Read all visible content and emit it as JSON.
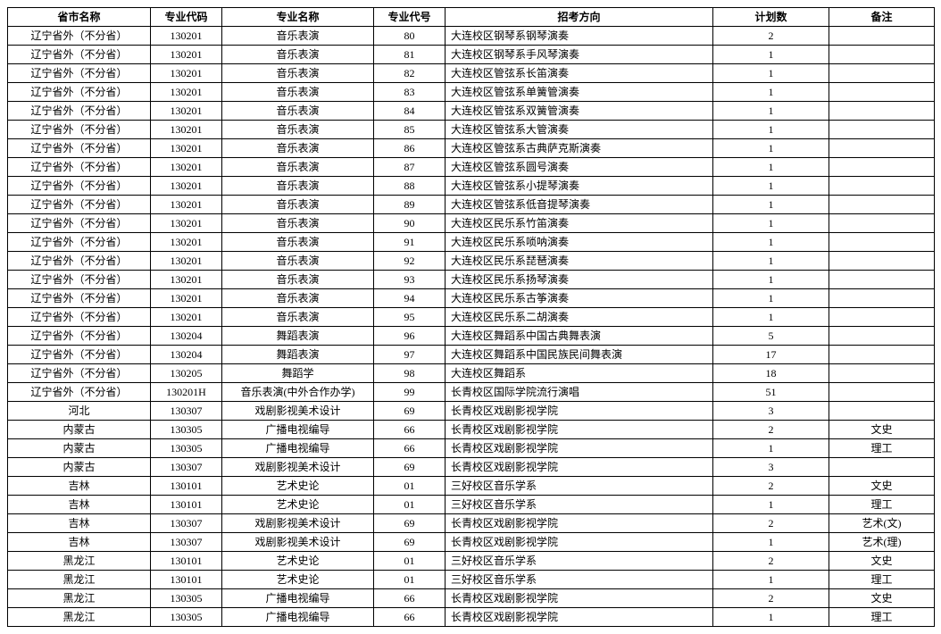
{
  "table": {
    "columns": [
      "省市名称",
      "专业代码",
      "专业名称",
      "专业代号",
      "招考方向",
      "计划数",
      "备注"
    ],
    "col_align": [
      "c",
      "c",
      "c",
      "c",
      "l",
      "c",
      "c"
    ],
    "rows": [
      [
        "辽宁省外（不分省）",
        "130201",
        "音乐表演",
        "80",
        "大连校区钢琴系钢琴演奏",
        "2",
        ""
      ],
      [
        "辽宁省外（不分省）",
        "130201",
        "音乐表演",
        "81",
        "大连校区钢琴系手风琴演奏",
        "1",
        ""
      ],
      [
        "辽宁省外（不分省）",
        "130201",
        "音乐表演",
        "82",
        "大连校区管弦系长笛演奏",
        "1",
        ""
      ],
      [
        "辽宁省外（不分省）",
        "130201",
        "音乐表演",
        "83",
        "大连校区管弦系单簧管演奏",
        "1",
        ""
      ],
      [
        "辽宁省外（不分省）",
        "130201",
        "音乐表演",
        "84",
        "大连校区管弦系双簧管演奏",
        "1",
        ""
      ],
      [
        "辽宁省外（不分省）",
        "130201",
        "音乐表演",
        "85",
        "大连校区管弦系大管演奏",
        "1",
        ""
      ],
      [
        "辽宁省外（不分省）",
        "130201",
        "音乐表演",
        "86",
        "大连校区管弦系古典萨克斯演奏",
        "1",
        ""
      ],
      [
        "辽宁省外（不分省）",
        "130201",
        "音乐表演",
        "87",
        "大连校区管弦系圆号演奏",
        "1",
        ""
      ],
      [
        "辽宁省外（不分省）",
        "130201",
        "音乐表演",
        "88",
        "大连校区管弦系小提琴演奏",
        "1",
        ""
      ],
      [
        "辽宁省外（不分省）",
        "130201",
        "音乐表演",
        "89",
        "大连校区管弦系低音提琴演奏",
        "1",
        ""
      ],
      [
        "辽宁省外（不分省）",
        "130201",
        "音乐表演",
        "90",
        "大连校区民乐系竹笛演奏",
        "1",
        ""
      ],
      [
        "辽宁省外（不分省）",
        "130201",
        "音乐表演",
        "91",
        "大连校区民乐系唢呐演奏",
        "1",
        ""
      ],
      [
        "辽宁省外（不分省）",
        "130201",
        "音乐表演",
        "92",
        "大连校区民乐系琵琶演奏",
        "1",
        ""
      ],
      [
        "辽宁省外（不分省）",
        "130201",
        "音乐表演",
        "93",
        "大连校区民乐系扬琴演奏",
        "1",
        ""
      ],
      [
        "辽宁省外（不分省）",
        "130201",
        "音乐表演",
        "94",
        "大连校区民乐系古筝演奏",
        "1",
        ""
      ],
      [
        "辽宁省外（不分省）",
        "130201",
        "音乐表演",
        "95",
        "大连校区民乐系二胡演奏",
        "1",
        ""
      ],
      [
        "辽宁省外（不分省）",
        "130204",
        "舞蹈表演",
        "96",
        "大连校区舞蹈系中国古典舞表演",
        "5",
        ""
      ],
      [
        "辽宁省外（不分省）",
        "130204",
        "舞蹈表演",
        "97",
        "大连校区舞蹈系中国民族民间舞表演",
        "17",
        ""
      ],
      [
        "辽宁省外（不分省）",
        "130205",
        "舞蹈学",
        "98",
        "大连校区舞蹈系",
        "18",
        ""
      ],
      [
        "辽宁省外（不分省）",
        "130201H",
        "音乐表演(中外合作办学)",
        "99",
        "长青校区国际学院流行演唱",
        "51",
        ""
      ],
      [
        "河北",
        "130307",
        "戏剧影视美术设计",
        "69",
        "长青校区戏剧影视学院",
        "3",
        ""
      ],
      [
        "内蒙古",
        "130305",
        "广播电视编导",
        "66",
        "长青校区戏剧影视学院",
        "2",
        "文史"
      ],
      [
        "内蒙古",
        "130305",
        "广播电视编导",
        "66",
        "长青校区戏剧影视学院",
        "1",
        "理工"
      ],
      [
        "内蒙古",
        "130307",
        "戏剧影视美术设计",
        "69",
        "长青校区戏剧影视学院",
        "3",
        ""
      ],
      [
        "吉林",
        "130101",
        "艺术史论",
        "01",
        "三好校区音乐学系",
        "2",
        "文史"
      ],
      [
        "吉林",
        "130101",
        "艺术史论",
        "01",
        "三好校区音乐学系",
        "1",
        "理工"
      ],
      [
        "吉林",
        "130307",
        "戏剧影视美术设计",
        "69",
        "长青校区戏剧影视学院",
        "2",
        "艺术(文)"
      ],
      [
        "吉林",
        "130307",
        "戏剧影视美术设计",
        "69",
        "长青校区戏剧影视学院",
        "1",
        "艺术(理)"
      ],
      [
        "黑龙江",
        "130101",
        "艺术史论",
        "01",
        "三好校区音乐学系",
        "2",
        "文史"
      ],
      [
        "黑龙江",
        "130101",
        "艺术史论",
        "01",
        "三好校区音乐学系",
        "1",
        "理工"
      ],
      [
        "黑龙江",
        "130305",
        "广播电视编导",
        "66",
        "长青校区戏剧影视学院",
        "2",
        "文史"
      ],
      [
        "黑龙江",
        "130305",
        "广播电视编导",
        "66",
        "长青校区戏剧影视学院",
        "1",
        "理工"
      ]
    ]
  }
}
